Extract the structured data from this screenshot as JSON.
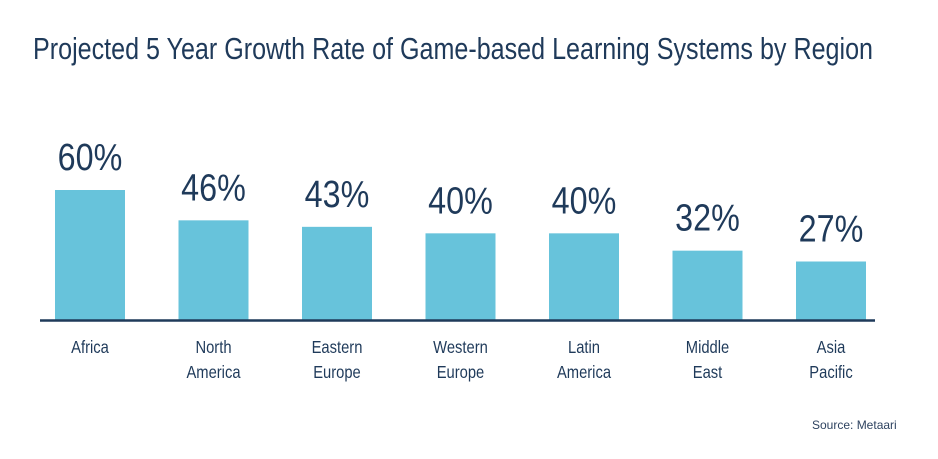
{
  "chart_data": {
    "type": "bar",
    "title": "Projected 5 Year Growth Rate of Game-based Learning Systems by Region",
    "categories": [
      [
        "Africa"
      ],
      [
        "North",
        "America"
      ],
      [
        "Eastern",
        "Europe"
      ],
      [
        "Western",
        "Europe"
      ],
      [
        "Latin",
        "America"
      ],
      [
        "Middle",
        "East"
      ],
      [
        "Asia",
        "Pacific"
      ]
    ],
    "values": [
      60,
      46,
      43,
      40,
      40,
      32,
      27
    ],
    "value_labels": [
      "60%",
      "46%",
      "43%",
      "40%",
      "40%",
      "32%",
      "27%"
    ],
    "xlabel": "",
    "ylabel": "",
    "ylim": [
      0,
      60
    ],
    "grid": false,
    "source": "Source: Metaari",
    "colors": {
      "bar": "#67C3DB",
      "text": "#1F3A5A",
      "axis": "#1F3A5A"
    }
  }
}
